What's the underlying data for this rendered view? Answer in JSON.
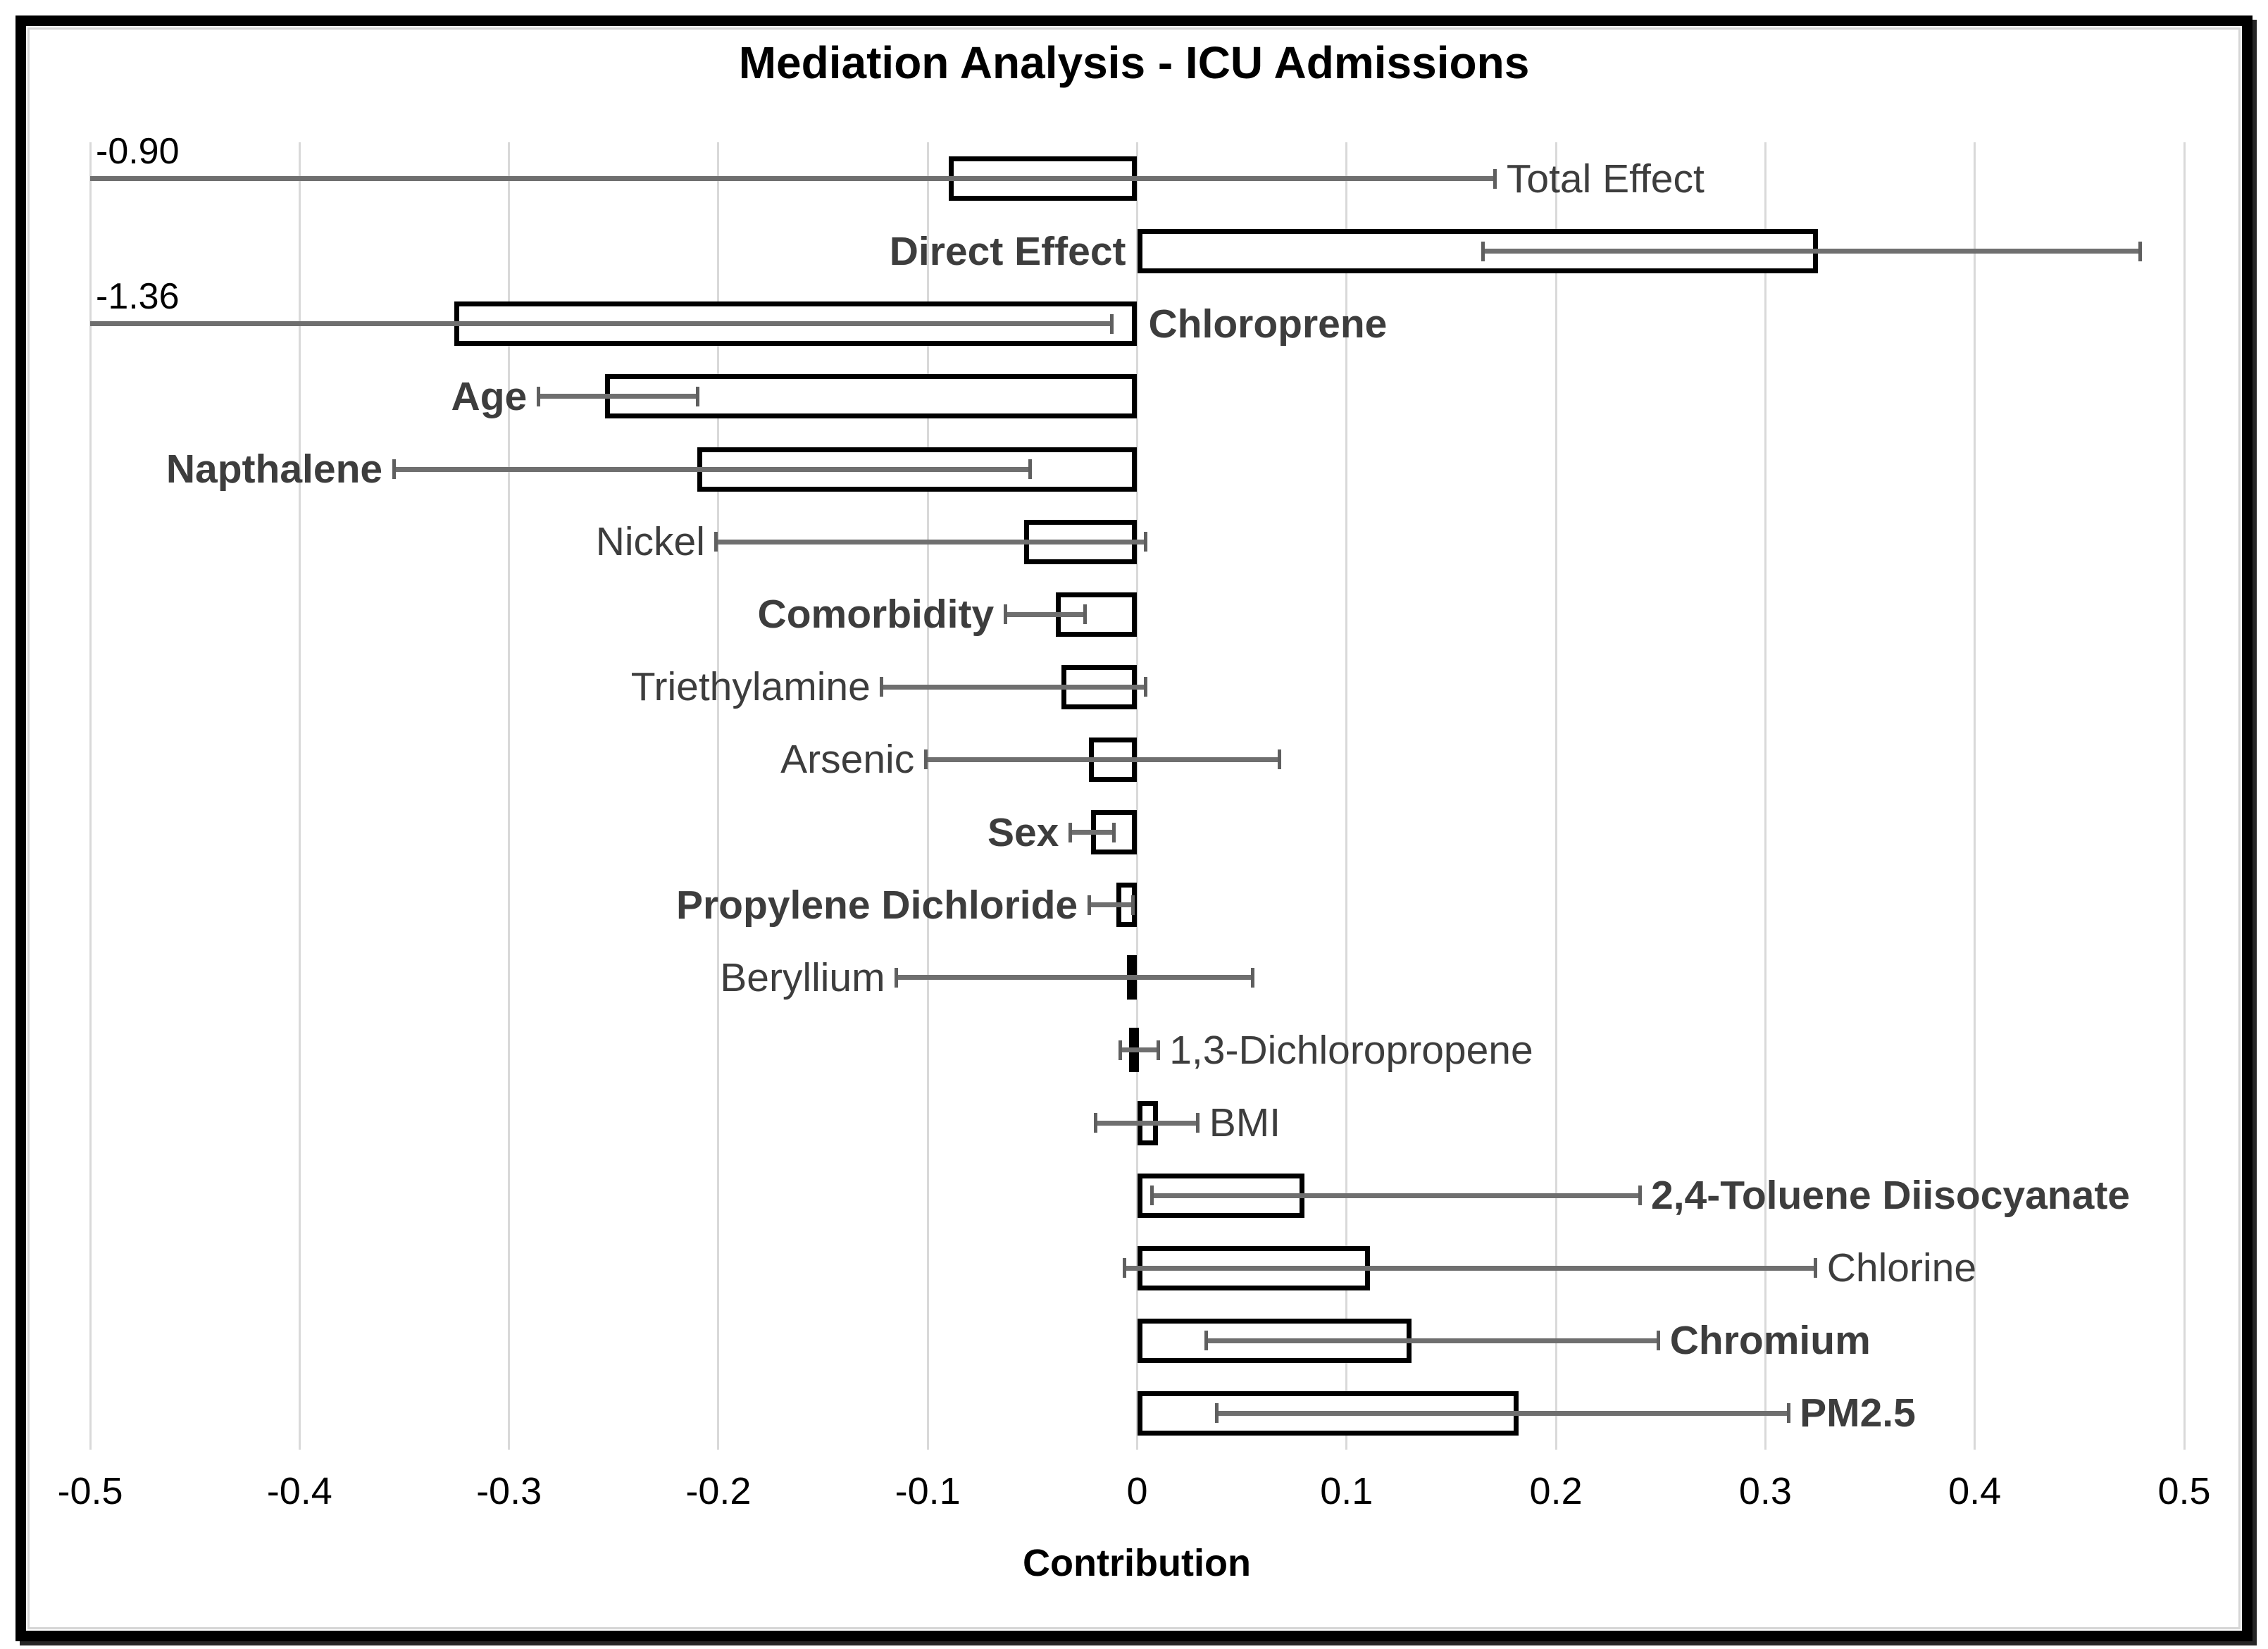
{
  "chart_data": {
    "type": "bar",
    "orientation": "horizontal",
    "title": "Mediation Analysis - ICU Admissions",
    "xlabel": "Contribution",
    "ylabel": "",
    "xlim": [
      -0.5,
      0.5
    ],
    "xticks": [
      -0.5,
      -0.4,
      -0.3,
      -0.2,
      -0.1,
      0,
      0.1,
      0.2,
      0.3,
      0.4,
      0.5
    ],
    "xtick_labels": [
      "-0.5",
      "-0.4",
      "-0.3",
      "-0.2",
      "-0.1",
      "0",
      "0.1",
      "0.2",
      "0.3",
      "0.4",
      "0.5"
    ],
    "grid": true,
    "legend": false,
    "bar_fill_color": "#ffffff",
    "bar_border_color": "#000000",
    "error_bar_color": "#6f6f6f",
    "label_color": "#3d3d3d",
    "grid_color": "#d9d9d9",
    "frame_color": "#000000",
    "rows": [
      {
        "label": "Total Effect",
        "bold": false,
        "value": -0.09,
        "ci_low": -0.9,
        "ci_high": 0.171,
        "label_side": "right",
        "annotation": "-0.90"
      },
      {
        "label": "Direct Effect",
        "bold": true,
        "value": 0.325,
        "ci_low": 0.165,
        "ci_high": 0.479,
        "label_side": "left"
      },
      {
        "label": "Chloroprene",
        "bold": true,
        "value": -0.326,
        "ci_low": -1.36,
        "ci_high": -0.012,
        "label_side": "right",
        "annotation": "-1.36"
      },
      {
        "label": "Age",
        "bold": true,
        "value": -0.254,
        "ci_low": -0.286,
        "ci_high": -0.21,
        "label_side": "left"
      },
      {
        "label": "Napthalene",
        "bold": true,
        "value": -0.21,
        "ci_low": -0.355,
        "ci_high": -0.051,
        "label_side": "left"
      },
      {
        "label": "Nickel",
        "bold": false,
        "value": -0.054,
        "ci_low": -0.201,
        "ci_high": 0.004,
        "label_side": "left"
      },
      {
        "label": "Comorbidity",
        "bold": true,
        "value": -0.039,
        "ci_low": -0.063,
        "ci_high": -0.025,
        "label_side": "left"
      },
      {
        "label": "Triethylamine",
        "bold": false,
        "value": -0.036,
        "ci_low": -0.122,
        "ci_high": 0.004,
        "label_side": "left"
      },
      {
        "label": "Arsenic",
        "bold": false,
        "value": -0.023,
        "ci_low": -0.101,
        "ci_high": 0.068,
        "label_side": "left"
      },
      {
        "label": "Sex",
        "bold": true,
        "value": -0.022,
        "ci_low": -0.032,
        "ci_high": -0.011,
        "label_side": "left"
      },
      {
        "label": "Propylene Dichloride",
        "bold": true,
        "value": -0.01,
        "ci_low": -0.023,
        "ci_high": -0.002,
        "label_side": "left"
      },
      {
        "label": "Beryllium",
        "bold": false,
        "value": -0.005,
        "ci_low": -0.115,
        "ci_high": 0.055,
        "label_side": "left"
      },
      {
        "label": "1,3-Dichloropropene",
        "bold": false,
        "value": -0.004,
        "ci_low": -0.008,
        "ci_high": 0.01,
        "label_side": "right"
      },
      {
        "label": "BMI",
        "bold": false,
        "value": 0.01,
        "ci_low": -0.02,
        "ci_high": 0.029,
        "label_side": "right"
      },
      {
        "label": "2,4-Toluene Diisocyanate",
        "bold": true,
        "value": 0.08,
        "ci_low": 0.007,
        "ci_high": 0.24,
        "label_side": "right"
      },
      {
        "label": "Chlorine",
        "bold": false,
        "value": 0.111,
        "ci_low": -0.006,
        "ci_high": 0.324,
        "label_side": "right"
      },
      {
        "label": "Chromium",
        "bold": true,
        "value": 0.131,
        "ci_low": 0.033,
        "ci_high": 0.249,
        "label_side": "right"
      },
      {
        "label": "PM2.5",
        "bold": true,
        "value": 0.182,
        "ci_low": 0.038,
        "ci_high": 0.311,
        "label_side": "right"
      }
    ]
  }
}
